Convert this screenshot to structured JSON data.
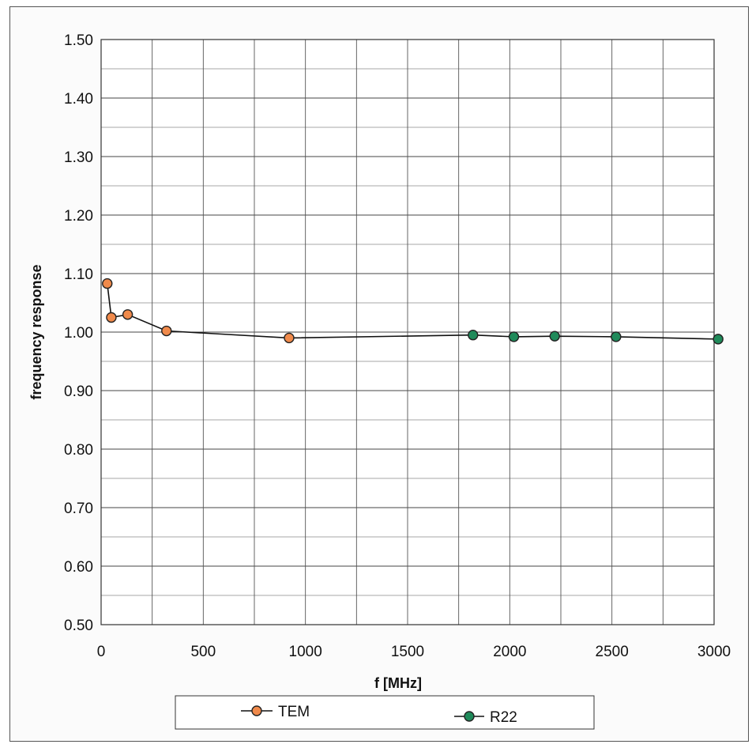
{
  "chart_data": {
    "type": "line",
    "xlabel": "f [MHz]",
    "ylabel": "frequency response",
    "xlim": [
      0,
      3000
    ],
    "ylim": [
      0.5,
      1.5
    ],
    "x_ticks": [
      "0",
      "500",
      "1000",
      "1500",
      "2000",
      "2500",
      "3000"
    ],
    "y_ticks": [
      "0.50",
      "0.60",
      "0.70",
      "0.80",
      "0.90",
      "1.00",
      "1.10",
      "1.20",
      "1.30",
      "1.40",
      "1.50"
    ],
    "grid": true,
    "legend_position": "bottom",
    "series": [
      {
        "name": "TEM",
        "color": "#f08a4b",
        "points": [
          [
            30,
            1.083
          ],
          [
            50,
            1.025
          ],
          [
            130,
            1.03
          ],
          [
            320,
            1.002
          ],
          [
            920,
            0.99
          ]
        ]
      },
      {
        "name": "R22",
        "color": "#1f8a5a",
        "points": [
          [
            920,
            0.99
          ],
          [
            1820,
            0.995
          ],
          [
            2020,
            0.992
          ],
          [
            2220,
            0.993
          ],
          [
            2520,
            0.992
          ],
          [
            3020,
            0.988
          ]
        ]
      }
    ]
  }
}
